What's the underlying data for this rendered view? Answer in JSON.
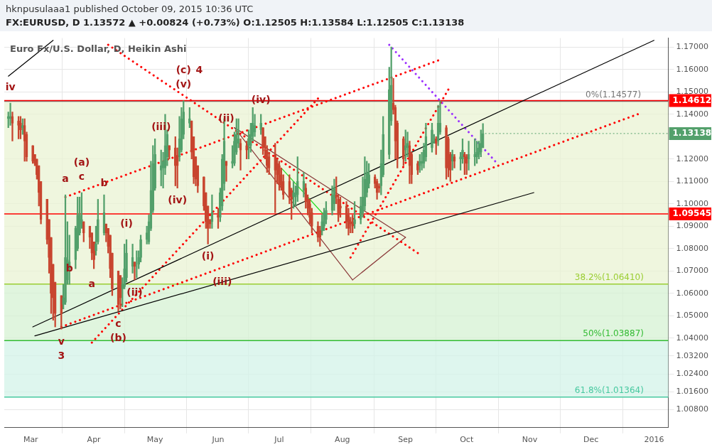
{
  "chart_data": {
    "type": "candlestick",
    "title": "Euro Fx/U.S. Dollar, D, Heikin Ashi",
    "subtitle": "FX:EURUSD, D 1.13572 ▲ +0.00824 (+0.73%) O:1.12505 H:1.13584 L:1.12505 C:1.13138",
    "x": [
      "2015-02-18",
      "2015-02-19",
      "2015-02-20",
      "2015-02-23",
      "2015-02-24",
      "2015-02-25",
      "2015-02-26",
      "2015-02-27",
      "2015-03-02",
      "2015-03-03",
      "2015-03-04",
      "2015-03-05",
      "2015-03-06",
      "2015-03-09",
      "2015-03-10",
      "2015-03-11",
      "2015-03-12",
      "2015-03-13",
      "2015-03-16",
      "2015-03-17",
      "2015-03-18",
      "2015-03-19",
      "2015-03-20",
      "2015-03-23",
      "2015-03-24",
      "2015-03-25",
      "2015-03-26",
      "2015-03-27",
      "2015-03-30",
      "2015-03-31",
      "2015-04-01",
      "2015-04-02",
      "2015-04-03",
      "2015-04-06",
      "2015-04-07",
      "2015-04-08",
      "2015-04-09",
      "2015-04-10",
      "2015-04-13",
      "2015-04-14",
      "2015-04-15",
      "2015-04-16",
      "2015-04-17",
      "2015-04-20",
      "2015-04-21",
      "2015-04-22",
      "2015-04-23",
      "2015-04-24",
      "2015-04-27",
      "2015-04-28",
      "2015-04-29",
      "2015-04-30",
      "2015-05-01",
      "2015-05-04",
      "2015-05-05",
      "2015-05-06",
      "2015-05-07",
      "2015-05-08",
      "2015-05-11",
      "2015-05-12",
      "2015-05-13",
      "2015-05-14",
      "2015-05-15",
      "2015-05-18",
      "2015-05-19",
      "2015-05-20",
      "2015-05-21",
      "2015-05-22",
      "2015-05-25",
      "2015-05-26",
      "2015-05-27",
      "2015-05-28",
      "2015-05-29",
      "2015-06-01",
      "2015-06-02",
      "2015-06-03",
      "2015-06-04",
      "2015-06-05",
      "2015-06-08",
      "2015-06-09",
      "2015-06-10",
      "2015-06-11",
      "2015-06-12",
      "2015-06-15",
      "2015-06-16",
      "2015-06-17",
      "2015-06-18",
      "2015-06-19",
      "2015-06-22",
      "2015-06-23",
      "2015-06-24",
      "2015-06-25",
      "2015-06-26",
      "2015-06-29",
      "2015-06-30",
      "2015-07-01",
      "2015-07-02",
      "2015-07-03",
      "2015-07-06",
      "2015-07-07",
      "2015-07-08",
      "2015-07-09",
      "2015-07-10",
      "2015-07-13",
      "2015-07-14",
      "2015-07-15",
      "2015-07-16",
      "2015-07-17",
      "2015-07-20",
      "2015-07-21",
      "2015-07-22",
      "2015-07-23",
      "2015-07-24",
      "2015-07-27",
      "2015-07-28",
      "2015-07-29",
      "2015-07-30",
      "2015-07-31",
      "2015-08-03",
      "2015-08-04",
      "2015-08-05",
      "2015-08-06",
      "2015-08-07",
      "2015-08-10",
      "2015-08-11",
      "2015-08-12",
      "2015-08-13",
      "2015-08-14",
      "2015-08-17",
      "2015-08-18",
      "2015-08-19",
      "2015-08-20",
      "2015-08-21",
      "2015-08-24",
      "2015-08-25",
      "2015-08-26",
      "2015-08-27",
      "2015-08-28",
      "2015-08-31",
      "2015-09-01",
      "2015-09-02",
      "2015-09-03",
      "2015-09-04",
      "2015-09-07",
      "2015-09-08",
      "2015-09-09",
      "2015-09-10",
      "2015-09-11",
      "2015-09-14",
      "2015-09-15",
      "2015-09-16",
      "2015-09-17",
      "2015-09-18",
      "2015-09-21",
      "2015-09-22",
      "2015-09-23",
      "2015-09-24",
      "2015-09-25",
      "2015-09-28",
      "2015-09-29",
      "2015-09-30",
      "2015-10-01",
      "2015-10-02",
      "2015-10-05",
      "2015-10-06",
      "2015-10-07",
      "2015-10-08",
      "2015-10-09"
    ],
    "ohlc": [
      [
        1.138,
        1.141,
        1.134,
        1.139
      ],
      [
        1.138,
        1.145,
        1.135,
        1.139
      ],
      [
        1.139,
        1.141,
        1.128,
        1.136
      ],
      [
        1.137,
        1.139,
        1.129,
        1.135
      ],
      [
        1.136,
        1.139,
        1.129,
        1.133
      ],
      [
        1.134,
        1.138,
        1.131,
        1.135
      ],
      [
        1.135,
        1.138,
        1.119,
        1.128
      ],
      [
        1.131,
        1.132,
        1.119,
        1.121
      ],
      [
        1.126,
        1.126,
        1.118,
        1.119
      ],
      [
        1.122,
        1.122,
        1.117,
        1.118
      ],
      [
        1.12,
        1.12,
        1.111,
        1.113
      ],
      [
        1.117,
        1.117,
        1.099,
        1.105
      ],
      [
        1.11,
        1.11,
        1.091,
        1.093
      ],
      [
        1.102,
        1.102,
        1.082,
        1.084
      ],
      [
        1.093,
        1.093,
        1.069,
        1.076
      ],
      [
        1.085,
        1.085,
        1.051,
        1.06
      ],
      [
        1.073,
        1.073,
        1.048,
        1.058
      ],
      [
        1.065,
        1.065,
        1.045,
        1.051
      ],
      [
        1.059,
        1.059,
        1.044,
        1.051
      ],
      [
        1.055,
        1.064,
        1.053,
        1.058
      ],
      [
        1.056,
        1.104,
        1.055,
        1.076
      ],
      [
        1.066,
        1.092,
        1.064,
        1.075
      ],
      [
        1.071,
        1.086,
        1.064,
        1.074
      ],
      [
        1.075,
        1.09,
        1.071,
        1.089
      ],
      [
        1.08,
        1.103,
        1.079,
        1.095
      ],
      [
        1.087,
        1.103,
        1.086,
        1.095
      ],
      [
        1.091,
        1.105,
        1.089,
        1.093
      ],
      [
        1.092,
        1.092,
        1.083,
        1.087
      ],
      [
        1.09,
        1.09,
        1.08,
        1.085
      ],
      [
        1.087,
        1.087,
        1.075,
        1.078
      ],
      [
        1.083,
        1.083,
        1.071,
        1.075
      ],
      [
        1.079,
        1.09,
        1.077,
        1.082
      ],
      [
        1.083,
        1.102,
        1.082,
        1.093
      ],
      [
        1.087,
        1.104,
        1.086,
        1.096
      ],
      [
        1.091,
        1.091,
        1.083,
        1.087
      ],
      [
        1.089,
        1.089,
        1.078,
        1.081
      ],
      [
        1.086,
        1.086,
        1.067,
        1.071
      ],
      [
        1.078,
        1.078,
        1.059,
        1.062
      ],
      [
        1.07,
        1.07,
        1.052,
        1.055
      ],
      [
        1.068,
        1.068,
        1.053,
        1.058
      ],
      [
        1.062,
        1.067,
        1.054,
        1.064
      ],
      [
        1.063,
        1.082,
        1.062,
        1.071
      ],
      [
        1.067,
        1.084,
        1.065,
        1.078
      ],
      [
        1.072,
        1.082,
        1.069,
        1.076
      ],
      [
        1.074,
        1.074,
        1.066,
        1.072
      ],
      [
        1.073,
        1.079,
        1.067,
        1.073
      ],
      [
        1.073,
        1.079,
        1.071,
        1.076
      ],
      [
        1.076,
        1.086,
        1.074,
        1.084
      ],
      [
        1.084,
        1.09,
        1.082,
        1.087
      ],
      [
        1.083,
        1.095,
        1.082,
        1.092
      ],
      [
        1.089,
        1.119,
        1.088,
        1.106
      ],
      [
        1.097,
        1.126,
        1.096,
        1.118
      ],
      [
        1.107,
        1.129,
        1.106,
        1.122
      ],
      [
        1.115,
        1.124,
        1.108,
        1.117
      ],
      [
        1.116,
        1.123,
        1.107,
        1.119
      ],
      [
        1.116,
        1.14,
        1.113,
        1.126
      ],
      [
        1.121,
        1.133,
        1.117,
        1.131
      ],
      [
        1.126,
        1.126,
        1.12,
        1.124
      ],
      [
        1.125,
        1.13,
        1.108,
        1.117
      ],
      [
        1.121,
        1.125,
        1.107,
        1.117
      ],
      [
        1.121,
        1.139,
        1.119,
        1.129
      ],
      [
        1.124,
        1.143,
        1.123,
        1.138
      ],
      [
        1.131,
        1.146,
        1.129,
        1.141
      ],
      [
        1.136,
        1.143,
        1.134,
        1.138
      ],
      [
        1.137,
        1.137,
        1.12,
        1.123
      ],
      [
        1.13,
        1.13,
        1.109,
        1.112
      ],
      [
        1.121,
        1.121,
        1.108,
        1.111
      ],
      [
        1.117,
        1.117,
        1.105,
        1.108
      ],
      [
        1.112,
        1.112,
        1.097,
        1.099
      ],
      [
        1.105,
        1.105,
        1.089,
        1.092
      ],
      [
        1.099,
        1.099,
        1.082,
        1.089
      ],
      [
        1.093,
        1.093,
        1.089,
        1.091
      ],
      [
        1.092,
        1.104,
        1.089,
        1.096
      ],
      [
        1.095,
        1.098,
        1.089,
        1.094
      ],
      [
        1.094,
        1.107,
        1.092,
        1.105
      ],
      [
        1.099,
        1.122,
        1.097,
        1.12
      ],
      [
        1.109,
        1.138,
        1.106,
        1.128
      ],
      [
        1.119,
        1.119,
        1.11,
        1.117
      ],
      [
        1.118,
        1.126,
        1.116,
        1.119
      ],
      [
        1.118,
        1.132,
        1.117,
        1.128
      ],
      [
        1.123,
        1.138,
        1.122,
        1.131
      ],
      [
        1.127,
        1.138,
        1.125,
        1.129
      ],
      [
        1.127,
        1.129,
        1.115,
        1.124
      ],
      [
        1.126,
        1.128,
        1.12,
        1.124
      ],
      [
        1.126,
        1.133,
        1.12,
        1.129
      ],
      [
        1.126,
        1.136,
        1.123,
        1.131
      ],
      [
        1.13,
        1.143,
        1.128,
        1.136
      ],
      [
        1.132,
        1.14,
        1.13,
        1.135
      ],
      [
        1.133,
        1.14,
        1.131,
        1.136
      ],
      [
        1.134,
        1.134,
        1.122,
        1.125
      ],
      [
        1.13,
        1.13,
        1.12,
        1.125
      ],
      [
        1.124,
        1.126,
        1.114,
        1.117
      ],
      [
        1.121,
        1.123,
        1.113,
        1.116
      ],
      [
        1.122,
        1.127,
        1.096,
        1.115
      ],
      [
        1.118,
        1.12,
        1.109,
        1.113
      ],
      [
        1.117,
        1.119,
        1.106,
        1.109
      ],
      [
        1.113,
        1.116,
        1.106,
        1.108
      ],
      [
        1.11,
        1.113,
        1.102,
        1.104
      ],
      [
        1.11,
        1.113,
        1.1,
        1.103
      ],
      [
        1.106,
        1.107,
        1.093,
        1.102
      ],
      [
        1.103,
        1.11,
        1.098,
        1.105
      ],
      [
        1.103,
        1.108,
        1.099,
        1.105
      ],
      [
        1.104,
        1.121,
        1.101,
        1.11
      ],
      [
        1.106,
        1.114,
        1.103,
        1.11
      ],
      [
        1.107,
        1.109,
        1.098,
        1.101
      ],
      [
        1.102,
        1.104,
        1.095,
        1.098
      ],
      [
        1.1,
        1.102,
        1.091,
        1.094
      ],
      [
        1.096,
        1.098,
        1.087,
        1.09
      ],
      [
        1.09,
        1.092,
        1.083,
        1.085
      ],
      [
        1.088,
        1.09,
        1.081,
        1.085
      ],
      [
        1.088,
        1.095,
        1.086,
        1.092
      ],
      [
        1.09,
        1.098,
        1.088,
        1.096
      ],
      [
        1.093,
        1.101,
        1.091,
        1.097
      ],
      [
        1.097,
        1.108,
        1.095,
        1.104
      ],
      [
        1.1,
        1.111,
        1.097,
        1.107
      ],
      [
        1.104,
        1.112,
        1.1,
        1.103
      ],
      [
        1.102,
        1.104,
        1.092,
        1.095
      ],
      [
        1.099,
        1.103,
        1.094,
        1.098
      ],
      [
        1.099,
        1.101,
        1.089,
        1.092
      ],
      [
        1.095,
        1.098,
        1.086,
        1.089
      ],
      [
        1.092,
        1.094,
        1.087,
        1.091
      ],
      [
        1.092,
        1.095,
        1.087,
        1.09
      ],
      [
        1.091,
        1.101,
        1.089,
        1.093
      ],
      [
        1.093,
        1.103,
        1.091,
        1.099
      ],
      [
        1.096,
        1.112,
        1.094,
        1.103
      ],
      [
        1.099,
        1.121,
        1.097,
        1.111
      ],
      [
        1.105,
        1.119,
        1.103,
        1.114
      ],
      [
        1.109,
        1.118,
        1.107,
        1.113
      ],
      [
        1.112,
        1.113,
        1.107,
        1.109
      ],
      [
        1.11,
        1.111,
        1.102,
        1.105
      ],
      [
        1.108,
        1.109,
        1.105,
        1.107
      ],
      [
        1.108,
        1.124,
        1.104,
        1.118
      ],
      [
        1.113,
        1.139,
        1.112,
        1.131
      ],
      [
        1.122,
        1.161,
        1.12,
        1.151
      ],
      [
        1.137,
        1.17,
        1.135,
        1.153
      ],
      [
        1.145,
        1.156,
        1.14,
        1.142
      ],
      [
        1.143,
        1.144,
        1.12,
        1.128
      ],
      [
        1.136,
        1.137,
        1.116,
        1.12
      ],
      [
        1.129,
        1.13,
        1.117,
        1.12
      ],
      [
        1.124,
        1.133,
        1.119,
        1.126
      ],
      [
        1.125,
        1.132,
        1.121,
        1.127
      ],
      [
        1.126,
        1.128,
        1.109,
        1.117
      ],
      [
        1.122,
        1.123,
        1.109,
        1.113
      ],
      [
        1.118,
        1.119,
        1.113,
        1.115
      ],
      [
        1.117,
        1.122,
        1.114,
        1.119
      ],
      [
        1.118,
        1.123,
        1.115,
        1.119
      ],
      [
        1.118,
        1.127,
        1.116,
        1.124
      ],
      [
        1.121,
        1.136,
        1.119,
        1.13
      ],
      [
        1.125,
        1.136,
        1.123,
        1.133
      ],
      [
        1.129,
        1.131,
        1.127,
        1.129
      ],
      [
        1.129,
        1.13,
        1.122,
        1.127
      ],
      [
        1.128,
        1.144,
        1.126,
        1.136
      ],
      [
        1.132,
        1.146,
        1.131,
        1.136
      ],
      [
        1.134,
        1.135,
        1.111,
        1.116
      ],
      [
        1.129,
        1.13,
        1.112,
        1.116
      ],
      [
        1.122,
        1.123,
        1.11,
        1.115
      ],
      [
        1.119,
        1.124,
        1.115,
        1.122
      ],
      [
        1.121,
        1.122,
        1.116,
        1.119
      ],
      [
        1.12,
        1.123,
        1.115,
        1.121
      ],
      [
        1.12,
        1.129,
        1.118,
        1.124
      ],
      [
        1.122,
        1.123,
        1.113,
        1.121
      ],
      [
        1.121,
        1.122,
        1.113,
        1.118
      ],
      [
        1.12,
        1.128,
        1.115,
        1.122
      ],
      [
        1.121,
        1.129,
        1.117,
        1.122
      ],
      [
        1.121,
        1.128,
        1.118,
        1.123
      ],
      [
        1.122,
        1.128,
        1.12,
        1.125
      ],
      [
        1.123,
        1.133,
        1.121,
        1.127
      ],
      [
        1.12505,
        1.13584,
        1.12505,
        1.13138
      ]
    ],
    "colors": [
      "#53a06b",
      "#53a06b",
      "#c8452f",
      "#c8452f",
      "#c8452f",
      "#53a06b",
      "#c8452f",
      "#c8452f",
      "#c8452f",
      "#c8452f",
      "#c8452f",
      "#c8452f",
      "#c8452f",
      "#c8452f",
      "#c8452f",
      "#c8452f",
      "#c8452f",
      "#c8452f",
      "#c8452f",
      "#53a06b",
      "#53a06b",
      "#53a06b",
      "#53a06b",
      "#53a06b",
      "#53a06b",
      "#53a06b",
      "#53a06b",
      "#c8452f",
      "#c8452f",
      "#c8452f",
      "#c8452f",
      "#53a06b",
      "#53a06b",
      "#53a06b",
      "#c8452f",
      "#c8452f",
      "#c8452f",
      "#c8452f",
      "#c8452f",
      "#c8452f",
      "#53a06b",
      "#53a06b",
      "#53a06b",
      "#53a06b",
      "#c8452f",
      "#53a06b",
      "#53a06b",
      "#53a06b",
      "#53a06b",
      "#53a06b",
      "#53a06b",
      "#53a06b",
      "#53a06b",
      "#53a06b",
      "#53a06b",
      "#53a06b",
      "#53a06b",
      "#c8452f",
      "#c8452f",
      "#c8452f",
      "#53a06b",
      "#53a06b",
      "#53a06b",
      "#53a06b",
      "#c8452f",
      "#c8452f",
      "#c8452f",
      "#c8452f",
      "#c8452f",
      "#c8452f",
      "#c8452f",
      "#c8452f",
      "#53a06b",
      "#c8452f",
      "#53a06b",
      "#53a06b",
      "#53a06b",
      "#c8452f",
      "#53a06b",
      "#53a06b",
      "#53a06b",
      "#53a06b",
      "#c8452f",
      "#c8452f",
      "#53a06b",
      "#53a06b",
      "#53a06b",
      "#53a06b",
      "#53a06b",
      "#c8452f",
      "#c8452f",
      "#c8452f",
      "#c8452f",
      "#c8452f",
      "#c8452f",
      "#c8452f",
      "#c8452f",
      "#c8452f",
      "#c8452f",
      "#c8452f",
      "#53a06b",
      "#53a06b",
      "#53a06b",
      "#53a06b",
      "#c8452f",
      "#c8452f",
      "#c8452f",
      "#c8452f",
      "#c8452f",
      "#c8452f",
      "#53a06b",
      "#53a06b",
      "#53a06b",
      "#53a06b",
      "#53a06b",
      "#c8452f",
      "#c8452f",
      "#c8452f",
      "#c8452f",
      "#c8452f",
      "#c8452f",
      "#c8452f",
      "#53a06b",
      "#53a06b",
      "#53a06b",
      "#53a06b",
      "#53a06b",
      "#53a06b",
      "#c8452f",
      "#c8452f",
      "#c8452f",
      "#53a06b",
      "#53a06b",
      "#53a06b",
      "#53a06b",
      "#c8452f",
      "#c8452f",
      "#c8452f",
      "#c8452f",
      "#53a06b",
      "#53a06b",
      "#c8452f",
      "#c8452f",
      "#c8452f",
      "#53a06b",
      "#53a06b",
      "#53a06b",
      "#53a06b",
      "#53a06b",
      "#53a06b",
      "#c8452f",
      "#53a06b",
      "#53a06b",
      "#c8452f",
      "#c8452f",
      "#c8452f",
      "#53a06b",
      "#c8452f",
      "#53a06b",
      "#53a06b",
      "#c8452f",
      "#c8452f",
      "#53a06b",
      "#53a06b",
      "#53a06b",
      "#53a06b",
      "#53a06b",
      "#53a06b"
    ],
    "series": [
      {
        "type": "line",
        "color": "#000000",
        "line_style": "solid",
        "x": [
          "2015-02-18",
          "2015-03-12"
        ],
        "values": [
          1.157,
          1.173
        ]
      },
      {
        "type": "line",
        "color": "#000000",
        "line_style": "solid",
        "x": [
          "2015-03-02",
          "2016-01-01"
        ],
        "values": [
          1.045,
          1.173
        ]
      },
      {
        "type": "line",
        "color": "#000000",
        "line_style": "solid",
        "x": [
          "2015-03-03",
          "2015-11-03"
        ],
        "values": [
          1.041,
          1.105
        ]
      },
      {
        "type": "line",
        "color": "#ff0000",
        "line_style": "dotted",
        "x": [
          "2015-04-08",
          "2015-09-07"
        ],
        "values": [
          1.171,
          1.078
        ]
      },
      {
        "type": "line",
        "color": "#ff0000",
        "line_style": "dotted",
        "x": [
          "2015-03-16",
          "2015-12-24"
        ],
        "values": [
          1.045,
          1.14
        ]
      },
      {
        "type": "line",
        "color": "#ff0000",
        "line_style": "dotted",
        "x": [
          "2015-03-18",
          "2015-09-17"
        ],
        "values": [
          1.103,
          1.164
        ]
      },
      {
        "type": "line",
        "color": "#ff0000",
        "line_style": "dotted",
        "x": [
          "2015-03-31",
          "2015-07-20"
        ],
        "values": [
          1.038,
          1.147
        ]
      },
      {
        "type": "line",
        "color": "#ff0000",
        "line_style": "dotted",
        "x": [
          "2015-08-05",
          "2015-09-22"
        ],
        "values": [
          1.076,
          1.151
        ]
      },
      {
        "type": "line",
        "color": "#9b30ff",
        "line_style": "dotted",
        "x": [
          "2015-08-24",
          "2015-10-15"
        ],
        "values": [
          1.171,
          1.119
        ]
      },
      {
        "type": "line",
        "color": "#8b3a3a",
        "line_style": "solid",
        "x": [
          "2015-06-09",
          "2015-09-01"
        ],
        "values": [
          1.134,
          1.085
        ]
      },
      {
        "type": "line",
        "color": "#8b3a3a",
        "line_style": "solid",
        "x": [
          "2015-06-09",
          "2015-08-06"
        ],
        "values": [
          1.134,
          1.066
        ]
      },
      {
        "type": "line",
        "color": "#8b3a3a",
        "line_style": "solid",
        "x": [
          "2015-08-06",
          "2015-09-01"
        ],
        "values": [
          1.066,
          1.085
        ]
      },
      {
        "type": "line",
        "color": "#22dd22",
        "line_style": "solid",
        "x": [
          "2015-07-02",
          "2015-07-23"
        ],
        "values": [
          1.116,
          1.095
        ]
      }
    ],
    "xlim": [
      "2015-02-16",
      "2016-01-08"
    ],
    "xticks": [
      {
        "value": "2015-03-01",
        "label": "Mar"
      },
      {
        "value": "2015-04-01",
        "label": "Apr"
      },
      {
        "value": "2015-05-01",
        "label": "May"
      },
      {
        "value": "2015-06-01",
        "label": "Jun"
      },
      {
        "value": "2015-07-01",
        "label": "Jul"
      },
      {
        "value": "2015-08-01",
        "label": "Aug"
      },
      {
        "value": "2015-09-01",
        "label": "Sep"
      },
      {
        "value": "2015-10-01",
        "label": "Oct"
      },
      {
        "value": "2015-11-01",
        "label": "Nov"
      },
      {
        "value": "2015-12-01",
        "label": "Dec"
      },
      {
        "value": "2016-01-01",
        "label": "2016"
      }
    ],
    "ylim": [
      1.0,
      1.174
    ],
    "yticks": [
      {
        "value": 1.17,
        "label": "1.17000"
      },
      {
        "value": 1.16,
        "label": "1.16000"
      },
      {
        "value": 1.15,
        "label": "1.15000"
      },
      {
        "value": 1.14,
        "label": "1.14000"
      },
      {
        "value": 1.12,
        "label": "1.12000"
      },
      {
        "value": 1.11,
        "label": "1.11000"
      },
      {
        "value": 1.1,
        "label": "1.10000"
      },
      {
        "value": 1.09,
        "label": "1.09000"
      },
      {
        "value": 1.08,
        "label": "1.08000"
      },
      {
        "value": 1.07,
        "label": "1.07000"
      },
      {
        "value": 1.06,
        "label": "1.06000"
      },
      {
        "value": 1.05,
        "label": "1.05000"
      },
      {
        "value": 1.04,
        "label": "1.04000"
      },
      {
        "value": 1.032,
        "label": "1.03200"
      },
      {
        "value": 1.024,
        "label": "1.02400"
      },
      {
        "value": 1.016,
        "label": "1.01600"
      },
      {
        "value": 1.008,
        "label": "1.00800"
      }
    ],
    "grid": true,
    "bands": [
      {
        "axis": "y",
        "from": 1.0641,
        "to": 1.14577,
        "color": "#e9f3d3"
      },
      {
        "axis": "y",
        "from": 1.03887,
        "to": 1.0641,
        "color": "#d6f1d3"
      },
      {
        "axis": "y",
        "from": 1.01364,
        "to": 1.03887,
        "color": "#d3f3e8"
      }
    ],
    "ref_lines": [
      {
        "axis": "y",
        "value": 1.14577,
        "color": "#777777"
      },
      {
        "axis": "y",
        "value": 1.0641,
        "color": "#9acd32"
      },
      {
        "axis": "y",
        "value": 1.03887,
        "color": "#33bb33"
      },
      {
        "axis": "y",
        "value": 1.01364,
        "color": "#48c9a0"
      },
      {
        "axis": "y",
        "value": 1.14612,
        "label": "1.14612",
        "color": "#ff0000"
      },
      {
        "axis": "y",
        "value": 1.09545,
        "label": "1.09545",
        "color": "#ff0000"
      }
    ],
    "annotations": [
      "hknpusulaaa1 published October 09, 2015 10:36 UTC",
      {
        "text": "iv",
        "x": "2015-02-19",
        "y": 1.145
      },
      {
        "text": "a",
        "x": "2015-03-18",
        "y": 1.104
      },
      {
        "text": "c",
        "x": "2015-03-26",
        "y": 1.105
      },
      {
        "text": "(a)",
        "x": "2015-03-26",
        "y": 1.105
      },
      {
        "text": "b",
        "x": "2015-04-06",
        "y": 1.109
      },
      {
        "text": "b",
        "x": "2015-03-20",
        "y": 1.071
      },
      {
        "text": "a",
        "x": "2015-03-31",
        "y": 1.064
      },
      {
        "text": "(i)",
        "x": "2015-04-17",
        "y": 1.084
      },
      {
        "text": "(ii)",
        "x": "2015-04-21",
        "y": 1.06
      },
      {
        "text": "c",
        "x": "2015-04-13",
        "y": 1.052
      },
      {
        "text": "(b)",
        "x": "2015-04-13",
        "y": 1.052
      },
      {
        "text": "v",
        "x": "2015-03-16",
        "y": 1.044
      },
      {
        "text": "3",
        "x": "2015-03-16",
        "y": 1.044
      },
      {
        "text": "(iii)",
        "x": "2015-05-04",
        "y": 1.134
      },
      {
        "text": "(iv)",
        "x": "2015-05-12",
        "y": 1.107
      },
      {
        "text": "(v)",
        "x": "2015-05-15",
        "y": 1.146
      },
      {
        "text": "(c)",
        "x": "2015-05-15",
        "y": 1.146
      },
      {
        "text": "4",
        "x": "2015-05-15",
        "y": 1.146
      },
      {
        "text": "(ii)",
        "x": "2015-06-05",
        "y": 1.138
      },
      {
        "text": "(iv)",
        "x": "2015-06-22",
        "y": 1.146
      },
      {
        "text": "(i)",
        "x": "2015-05-27",
        "y": 1.082
      },
      {
        "text": "(iii)",
        "x": "2015-06-03",
        "y": 1.065
      },
      {
        "text": "1.13138",
        "x": "2015-10-09",
        "y": 1.13138
      },
      {
        "text": "0%(1.14577)",
        "x": "2015-12-12",
        "y": 1.14577
      },
      {
        "text": "38.2%(1.06410)",
        "x": "2015-12-10",
        "y": 1.0641
      },
      {
        "text": "50%(1.03887)",
        "x": "2015-12-12",
        "y": 1.03887
      },
      {
        "text": "61.8%(1.01364)",
        "x": "2015-12-10",
        "y": 1.01364
      }
    ]
  }
}
